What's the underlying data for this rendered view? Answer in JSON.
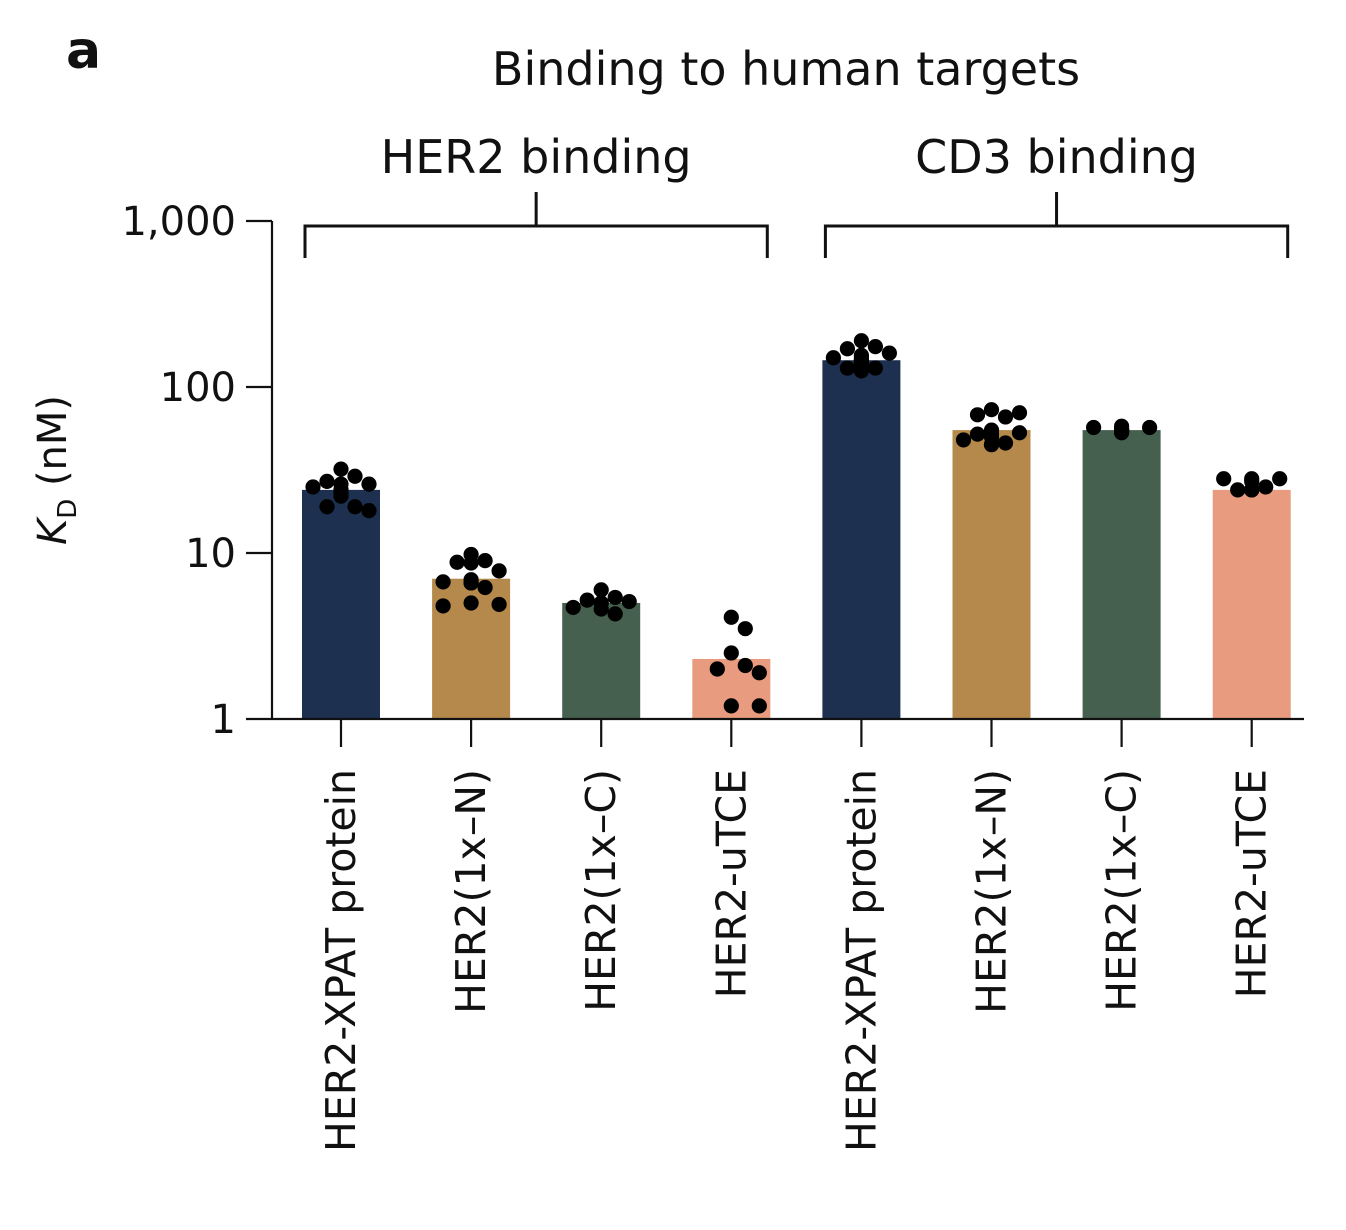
{
  "chart_data": {
    "type": "bar",
    "panel_letter": "a",
    "title": "Binding to human targets",
    "ylabel": "K",
    "ylabel_sub": "D",
    "ylabel_unit": " (nM)",
    "yscale": "log",
    "ylim": [
      1,
      1000
    ],
    "yticks": [
      {
        "value": 1,
        "label": "1"
      },
      {
        "value": 10,
        "label": "10"
      },
      {
        "value": 100,
        "label": "100"
      },
      {
        "value": 1000,
        "label": "1,000"
      }
    ],
    "grid": false,
    "legend": "none",
    "groups": [
      {
        "label": "HER2 binding",
        "categories": [
          0,
          1,
          2,
          3
        ]
      },
      {
        "label": "CD3 binding",
        "categories": [
          4,
          5,
          6,
          7
        ]
      }
    ],
    "categories": [
      "HER2-XPAT protein",
      "HER2(1x–N)",
      "HER2(1x–C)",
      "HER2-uTCE",
      "HER2-XPAT protein",
      "HER2(1x–N)",
      "HER2(1x–C)",
      "HER2-uTCE"
    ],
    "colors": [
      "#1e3050",
      "#b5894b",
      "#45604e",
      "#e89b7e",
      "#1e3050",
      "#b5894b",
      "#45604e",
      "#e89b7e"
    ],
    "values": [
      24,
      7,
      5,
      2.3,
      145,
      55,
      55,
      24
    ],
    "points": [
      [
        29,
        32,
        26,
        27,
        25,
        24,
        24,
        26,
        23,
        22,
        18,
        19,
        19
      ],
      [
        8.7,
        9.0,
        8.8,
        9.8,
        6.7,
        6.9,
        6.6,
        6.6,
        7.8,
        6.2,
        4.8,
        5.0,
        4.9
      ],
      [
        6.0,
        5.2,
        5.4,
        5.1,
        5.0,
        5.0,
        4.7,
        4.3,
        4.6
      ],
      [
        4.1,
        3.5,
        2.5,
        2.1,
        2.0,
        1.9,
        1.2,
        1.2
      ],
      [
        190,
        175,
        170,
        160,
        155,
        150,
        150,
        145,
        145,
        140,
        130,
        125,
        130
      ],
      [
        73,
        70,
        68,
        66,
        55,
        53,
        52,
        52,
        50,
        48,
        46,
        45,
        45
      ],
      [
        58,
        57,
        57,
        56,
        55,
        55,
        55,
        54,
        53
      ],
      [
        28,
        28,
        28,
        27,
        25,
        24,
        24,
        24,
        24,
        24
      ]
    ]
  }
}
